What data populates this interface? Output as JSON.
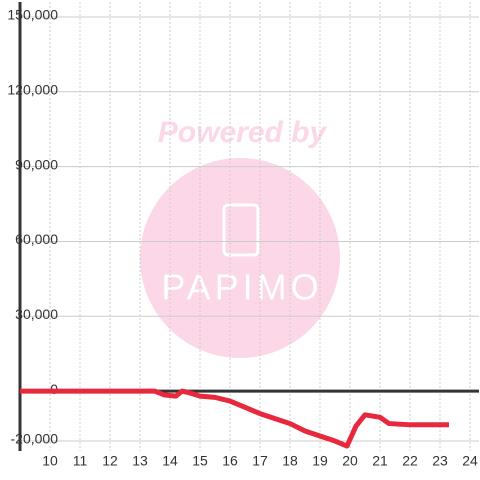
{
  "chart_data": {
    "type": "line",
    "watermark": {
      "line1": "Powered by",
      "line2": "PAPIMO"
    },
    "x": [
      9,
      13.5,
      13.8,
      14.2,
      14.4,
      14.6,
      15,
      15.5,
      16,
      16.5,
      17,
      17.5,
      18,
      18.5,
      19,
      19.5,
      19.9,
      20.2,
      20.5,
      21,
      21.3,
      22,
      23.3
    ],
    "series": [
      {
        "color": "#e8283c",
        "values": [
          0,
          0,
          -1500,
          -2000,
          0,
          -500,
          -2000,
          -2500,
          -4000,
          -6500,
          -9000,
          -11000,
          -13000,
          -16000,
          -18000,
          -20000,
          -22000,
          -14000,
          -9500,
          -10500,
          -13000,
          -13500,
          -13500
        ]
      }
    ],
    "xlim": [
      9,
      24.3
    ],
    "xticks": [
      10,
      11,
      12,
      13,
      14,
      15,
      16,
      17,
      18,
      19,
      20,
      21,
      22,
      23,
      24
    ],
    "ylim": [
      -24000,
      156000
    ],
    "yticks": [
      {
        "value": -20000,
        "label": "-20,000"
      },
      0,
      {
        "value": 30000,
        "label": "30,000"
      },
      {
        "value": 60000,
        "label": "60,000"
      },
      {
        "value": 90000,
        "label": "90,000"
      },
      {
        "value": 120000,
        "label": "120,000"
      },
      {
        "value": 150000,
        "label": "150,000"
      }
    ],
    "grid": true
  }
}
